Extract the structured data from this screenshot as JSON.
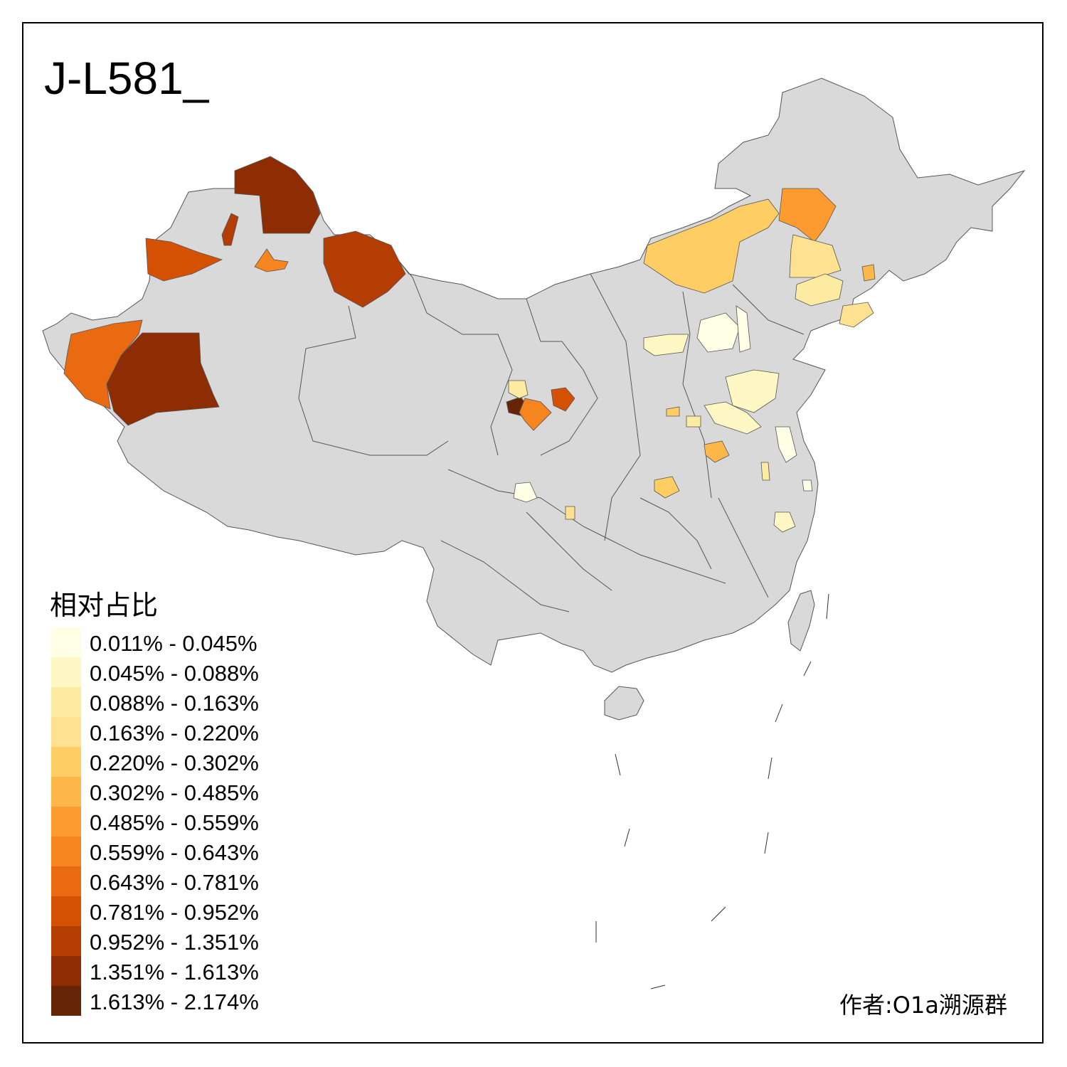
{
  "map": {
    "title": "J-L581_",
    "base_fill": "#d9d9d9",
    "border_color": "#555555"
  },
  "legend": {
    "title": "相对占比",
    "classes": [
      {
        "label": "0.011% - 0.045%",
        "color": "#ffffe5"
      },
      {
        "label": "0.045% - 0.088%",
        "color": "#fff7c4"
      },
      {
        "label": "0.088% - 0.163%",
        "color": "#feeba2"
      },
      {
        "label": "0.163% - 0.220%",
        "color": "#fee191"
      },
      {
        "label": "0.220% - 0.302%",
        "color": "#fece65"
      },
      {
        "label": "0.302% - 0.485%",
        "color": "#feb849"
      },
      {
        "label": "0.485% - 0.559%",
        "color": "#fd9b31"
      },
      {
        "label": "0.559% - 0.643%",
        "color": "#f6841f"
      },
      {
        "label": "0.643% - 0.781%",
        "color": "#e96a10"
      },
      {
        "label": "0.781% - 0.952%",
        "color": "#d45104"
      },
      {
        "label": "0.952% - 1.351%",
        "color": "#b43d03"
      },
      {
        "label": "1.351% - 1.613%",
        "color": "#8e2d04"
      },
      {
        "label": "1.613% - 2.174%",
        "color": "#662506"
      }
    ]
  },
  "regions": [
    {
      "name": "altay-region",
      "class": 11
    },
    {
      "name": "tacheng-region",
      "class": 10
    },
    {
      "name": "karamay-region",
      "class": 9
    },
    {
      "name": "bortala-region",
      "class": 8
    },
    {
      "name": "kashgar-region",
      "class": 7
    },
    {
      "name": "hotan-region",
      "class": 11
    },
    {
      "name": "changji-region",
      "class": 10
    },
    {
      "name": "hulunbuir-region",
      "class": 4
    },
    {
      "name": "hinggan-region",
      "class": 6
    },
    {
      "name": "ningxia-region",
      "class": 12
    },
    {
      "name": "lanzhou-region",
      "class": 7
    }
  ],
  "credit": "作者:O1a溯源群"
}
